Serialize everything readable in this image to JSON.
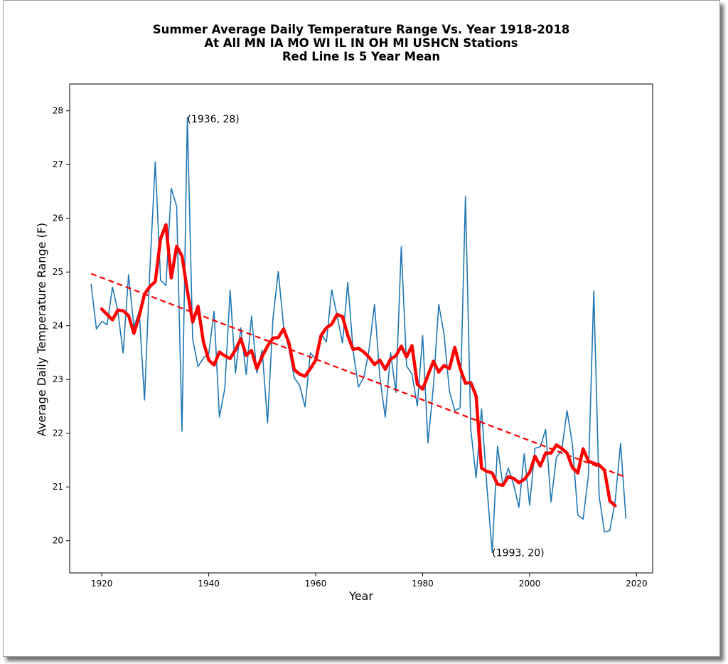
{
  "chart_data": {
    "type": "line",
    "title": [
      "Summer Average Daily Temperature Range Vs. Year 1918-2018",
      "At All MN IA MO WI IL IN OH MI USHCN Stations",
      "Red Line Is 5 Year Mean"
    ],
    "xlabel": "Year",
    "ylabel": "Average Daily Temperature Range (F)",
    "xlim": [
      1914,
      2023
    ],
    "ylim": [
      19.4,
      28.5
    ],
    "xticks": [
      1920,
      1940,
      1960,
      1980,
      2000,
      2020
    ],
    "yticks": [
      20,
      21,
      22,
      23,
      24,
      25,
      26,
      27,
      28
    ],
    "grid": false,
    "colors": {
      "raw": "#1f77b4",
      "mean": "#ff0000",
      "trend": "#ff0000"
    },
    "annotations": [
      {
        "text": "(1936, 28)",
        "x": 1936,
        "y": 27.85
      },
      {
        "text": "(1993, 20)",
        "x": 1993,
        "y": 19.78
      }
    ],
    "series": [
      {
        "x": [
          1918,
          1919,
          1920,
          1921,
          1922,
          1923,
          1924,
          1925,
          1926,
          1927,
          1928,
          1929,
          1930,
          1931,
          1932,
          1933,
          1934,
          1935,
          1936,
          1937,
          1938,
          1939,
          1940,
          1941,
          1942,
          1943,
          1944,
          1945,
          1946,
          1947,
          1948,
          1949,
          1950,
          1951,
          1952,
          1953,
          1954,
          1955,
          1956,
          1957,
          1958,
          1959,
          1960,
          1961,
          1962,
          1963,
          1964,
          1965,
          1966,
          1967,
          1968,
          1969,
          1970,
          1971,
          1972,
          1973,
          1974,
          1975,
          1976,
          1977,
          1978,
          1979,
          1980,
          1981,
          1982,
          1983,
          1984,
          1985,
          1986,
          1987,
          1988,
          1989,
          1990,
          1991,
          1992,
          1993,
          1994,
          1995,
          1996,
          1997,
          1998,
          1999,
          2000,
          2001,
          2002,
          2003,
          2004,
          2005,
          2006,
          2007,
          2008,
          2009,
          2010,
          2011,
          2012,
          2013,
          2014,
          2015,
          2016,
          2017,
          2018
        ],
        "y": [
          24.78,
          23.94,
          24.08,
          24.02,
          24.72,
          24.28,
          23.49,
          24.95,
          23.98,
          24.27,
          22.62,
          25.05,
          27.05,
          24.85,
          24.75,
          26.56,
          26.22,
          22.04,
          27.88,
          23.75,
          23.24,
          23.4,
          23.48,
          24.27,
          22.3,
          22.83,
          24.66,
          23.12,
          23.96,
          23.09,
          24.18,
          23.12,
          23.55,
          22.19,
          24.13,
          25.01,
          23.99,
          23.57,
          23.03,
          22.89,
          22.49,
          23.49,
          23.39,
          23.85,
          23.7,
          24.67,
          24.19,
          23.68,
          24.81,
          23.53,
          22.86,
          23.04,
          23.57,
          24.4,
          23.04,
          22.3,
          23.5,
          22.76,
          25.47,
          23.25,
          23.1,
          22.51,
          23.82,
          21.82,
          22.87,
          24.4,
          23.84,
          22.79,
          22.42,
          22.47,
          26.41,
          22.07,
          21.17,
          22.45,
          21.02,
          19.78,
          21.76,
          21.02,
          21.35,
          21.05,
          20.62,
          21.62,
          20.66,
          21.72,
          21.75,
          22.07,
          20.72,
          21.55,
          21.68,
          22.42,
          21.79,
          20.48,
          20.4,
          21.22,
          24.65,
          20.82,
          20.16,
          20.19,
          20.74,
          21.81,
          20.41
        ]
      },
      {
        "x": [
          1920,
          1921,
          1922,
          1923,
          1924,
          1925,
          1926,
          1927,
          1928,
          1929,
          1930,
          1931,
          1932,
          1933,
          1934,
          1935,
          1936,
          1937,
          1938,
          1939,
          1940,
          1941,
          1942,
          1943,
          1944,
          1945,
          1946,
          1947,
          1948,
          1949,
          1950,
          1951,
          1952,
          1953,
          1954,
          1955,
          1956,
          1957,
          1958,
          1959,
          1960,
          1961,
          1962,
          1963,
          1964,
          1965,
          1966,
          1967,
          1968,
          1969,
          1970,
          1971,
          1972,
          1973,
          1974,
          1975,
          1976,
          1977,
          1978,
          1979,
          1980,
          1981,
          1982,
          1983,
          1984,
          1985,
          1986,
          1987,
          1988,
          1989,
          1990,
          1991,
          1992,
          1993,
          1994,
          1995,
          1996,
          1997,
          1998,
          1999,
          2000,
          2001,
          2002,
          2003,
          2004,
          2005,
          2006,
          2007,
          2008,
          2009,
          2010,
          2011,
          2012,
          2013,
          2014,
          2015,
          2016
        ],
        "y": [
          24.31,
          24.21,
          24.11,
          24.29,
          24.28,
          24.19,
          23.86,
          24.18,
          24.59,
          24.73,
          24.82,
          25.62,
          25.88,
          24.89,
          25.48,
          25.3,
          24.65,
          24.07,
          24.36,
          23.7,
          23.36,
          23.27,
          23.51,
          23.44,
          23.39,
          23.55,
          23.76,
          23.45,
          23.54,
          23.2,
          23.43,
          23.62,
          23.77,
          23.78,
          23.94,
          23.68,
          23.18,
          23.1,
          23.06,
          23.2,
          23.36,
          23.82,
          23.96,
          24.03,
          24.21,
          24.17,
          23.82,
          23.56,
          23.58,
          23.51,
          23.41,
          23.28,
          23.36,
          23.19,
          23.38,
          23.44,
          23.62,
          23.42,
          23.63,
          22.91,
          22.82,
          23.08,
          23.34,
          23.14,
          23.26,
          23.2,
          23.6,
          23.21,
          22.93,
          22.94,
          22.69,
          21.35,
          21.29,
          21.26,
          21.05,
          21.03,
          21.19,
          21.16,
          21.08,
          21.14,
          21.27,
          21.57,
          21.39,
          21.63,
          21.63,
          21.78,
          21.72,
          21.63,
          21.36,
          21.26,
          21.71,
          21.48,
          21.44,
          21.41,
          21.31,
          20.74,
          20.65
        ]
      },
      {
        "x": [
          1918,
          2018
        ],
        "y": [
          24.97,
          21.18
        ]
      }
    ]
  }
}
